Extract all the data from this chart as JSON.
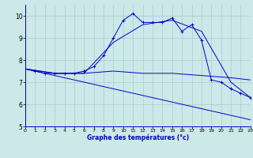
{
  "xlabel": "Graphe des températures (°c)",
  "xlim": [
    0,
    23
  ],
  "ylim": [
    5,
    10.5
  ],
  "yticks": [
    5,
    6,
    7,
    8,
    9,
    10
  ],
  "xticks": [
    0,
    1,
    2,
    3,
    4,
    5,
    6,
    7,
    8,
    9,
    10,
    11,
    12,
    13,
    14,
    15,
    16,
    17,
    18,
    19,
    20,
    21,
    22,
    23
  ],
  "bg_color": "#cce8e8",
  "grid_color": "#aacccc",
  "line_color": "#0000cc",
  "series": [
    {
      "x": [
        0,
        1,
        2,
        3,
        4,
        5,
        6,
        7,
        8,
        9,
        10,
        11,
        12,
        13,
        14,
        15,
        16,
        17,
        18,
        19,
        20,
        21,
        22,
        23
      ],
      "y": [
        7.6,
        7.5,
        7.4,
        7.4,
        7.4,
        7.4,
        7.5,
        7.7,
        8.2,
        9.0,
        9.8,
        10.1,
        9.7,
        9.7,
        9.7,
        9.9,
        9.3,
        9.6,
        8.9,
        7.1,
        7.0,
        6.7,
        6.5,
        6.3
      ],
      "marker": true
    },
    {
      "x": [
        0,
        3,
        6,
        9,
        12,
        15,
        18,
        21,
        23
      ],
      "y": [
        7.6,
        7.4,
        7.4,
        8.8,
        9.6,
        9.8,
        9.3,
        7.0,
        6.3
      ],
      "marker": false
    },
    {
      "x": [
        0,
        3,
        6,
        9,
        12,
        15,
        18,
        21,
        23
      ],
      "y": [
        7.6,
        7.4,
        7.4,
        7.5,
        7.4,
        7.4,
        7.3,
        7.2,
        7.1
      ],
      "marker": false
    },
    {
      "x": [
        0,
        23
      ],
      "y": [
        7.6,
        5.3
      ],
      "marker": false
    }
  ]
}
